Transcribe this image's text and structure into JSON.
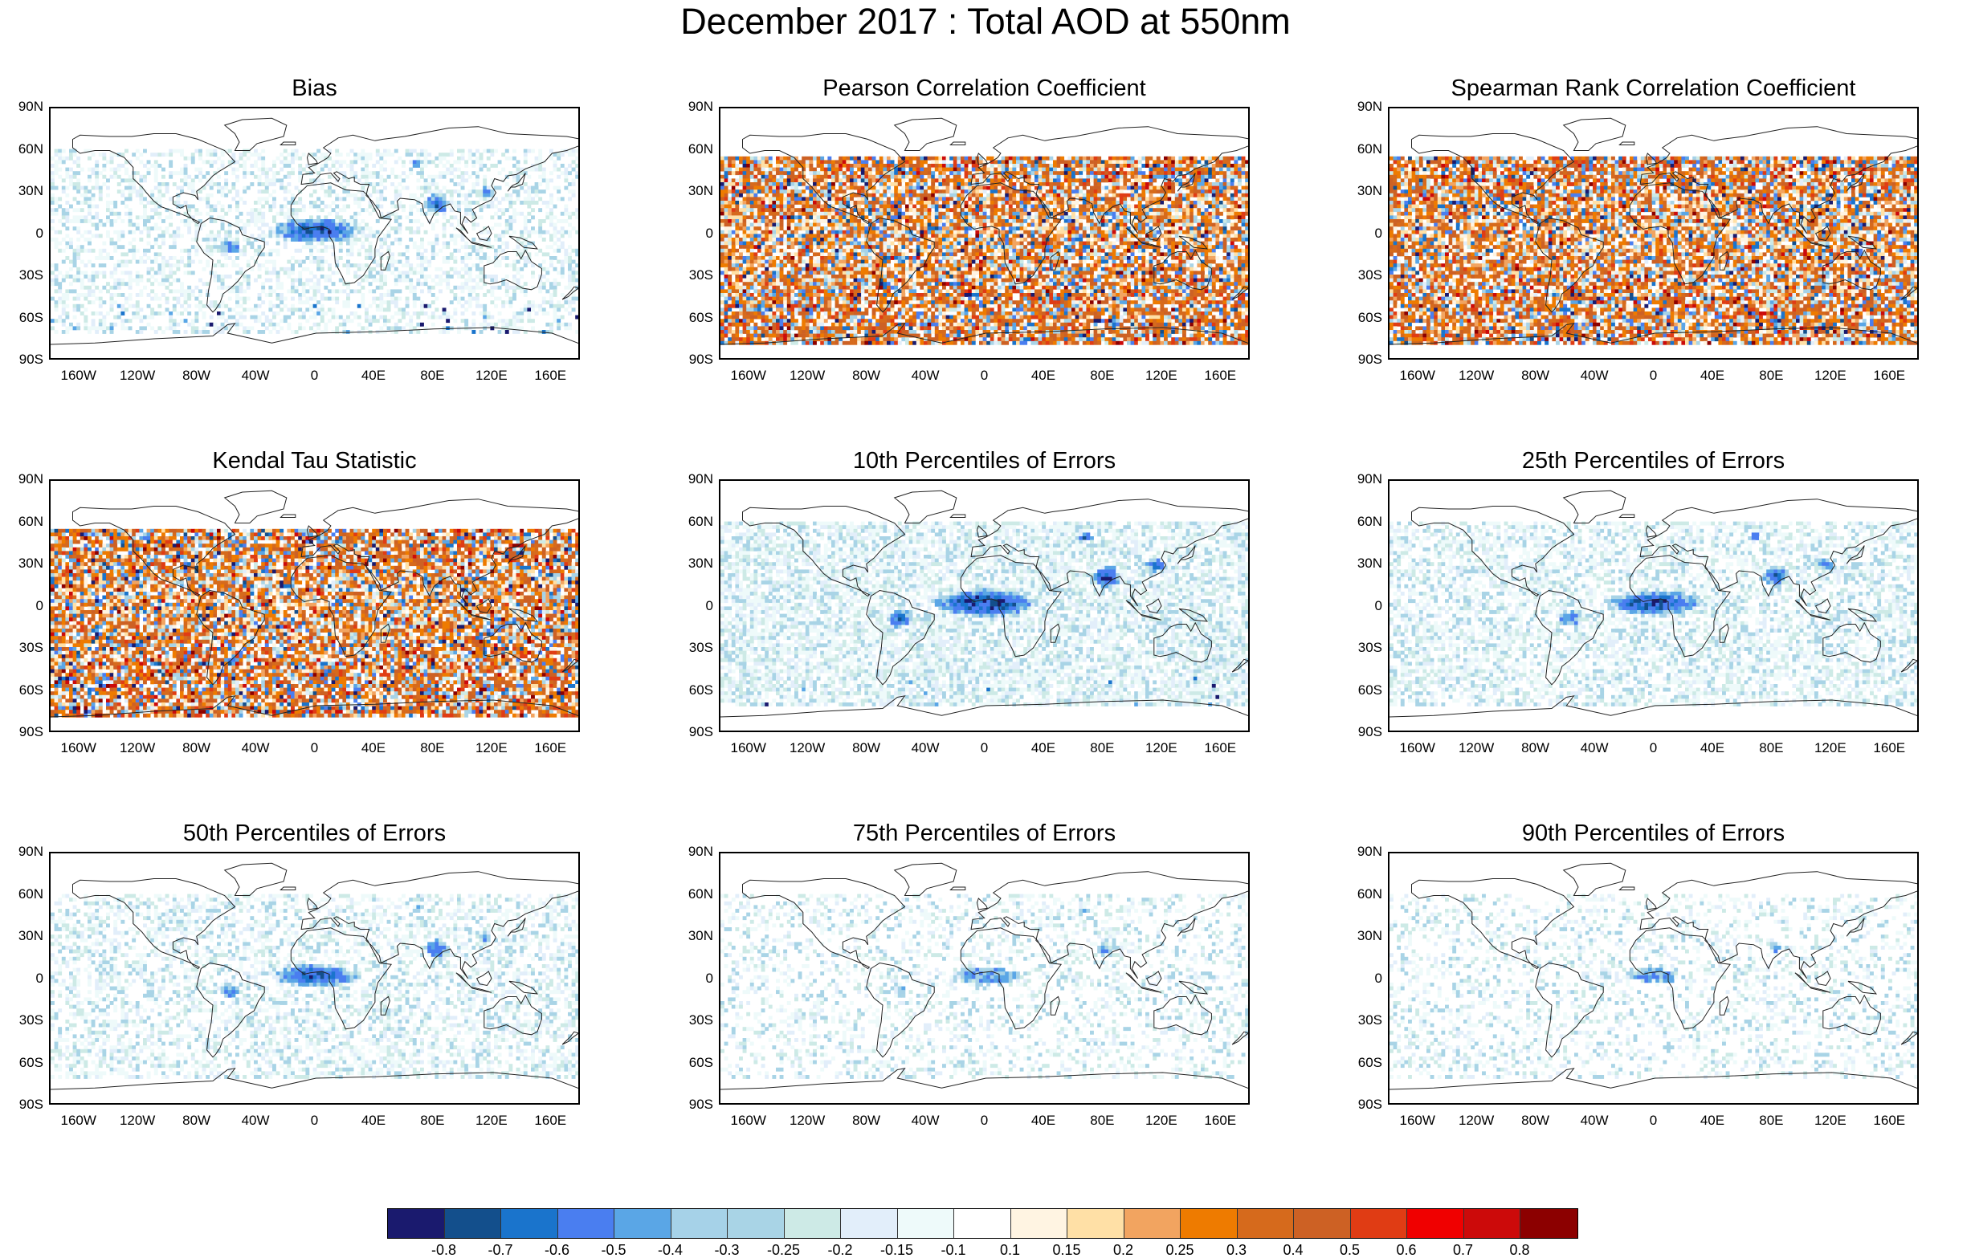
{
  "title": "December 2017 : Total AOD at 550nm",
  "lat_labels": [
    "90N",
    "60N",
    "30N",
    "0",
    "30S",
    "60S",
    "90S"
  ],
  "lon_labels": [
    "160W",
    "120W",
    "80W",
    "40W",
    "0",
    "40E",
    "80E",
    "120E",
    "160E"
  ],
  "panels": [
    {
      "title": "Bias",
      "kind": "bias"
    },
    {
      "title": "Pearson Correlation Coefficient",
      "kind": "corr"
    },
    {
      "title": "Spearman Rank Correlation Coefficient",
      "kind": "corr"
    },
    {
      "title": "Kendal Tau Statistic",
      "kind": "corr"
    },
    {
      "title": "10th Percentiles of Errors",
      "kind": "p10"
    },
    {
      "title": "25th Percentiles of Errors",
      "kind": "p25"
    },
    {
      "title": "50th Percentiles of Errors",
      "kind": "p50"
    },
    {
      "title": "75th Percentiles of Errors",
      "kind": "p75"
    },
    {
      "title": "90th Percentiles of Errors",
      "kind": "p90"
    }
  ],
  "colorbar": {
    "colors": [
      "#1a1a6e",
      "#134f8c",
      "#1a74cc",
      "#4a7ef0",
      "#5aa6e6",
      "#a6d2e8",
      "#a9d4e6",
      "#cdeae6",
      "#e2eefa",
      "#eefafa",
      "#ffffff",
      "#fff4e2",
      "#ffe0a6",
      "#f2a460",
      "#ee7b00",
      "#d66a1c",
      "#cd6124",
      "#e03c14",
      "#f00000",
      "#cc0a0a",
      "#8c0000"
    ],
    "labels": [
      "-0.8",
      "-0.7",
      "-0.6",
      "-0.5",
      "-0.4",
      "-0.3",
      "-0.25",
      "-0.2",
      "-0.15",
      "-0.1",
      "0.1",
      "0.15",
      "0.2",
      "0.25",
      "0.3",
      "0.4",
      "0.5",
      "0.6",
      "0.7",
      "0.8"
    ]
  }
}
